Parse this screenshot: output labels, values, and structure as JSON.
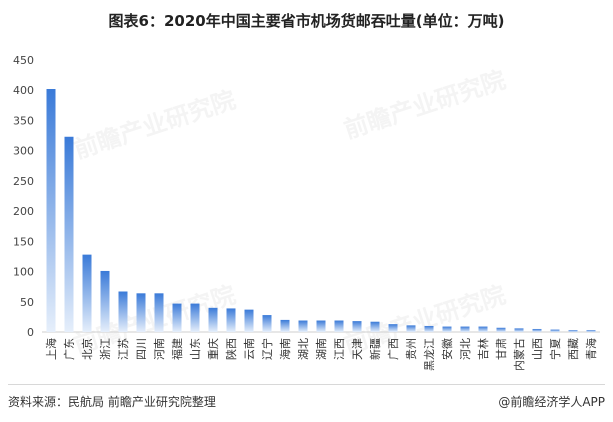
{
  "footer": {
    "source": "资料来源：民航局 前瞻产业研究院整理",
    "brand": "@前瞻经济学人APP"
  },
  "watermark": {
    "text": "前瞻产业研究院"
  },
  "chart_data": {
    "type": "bar",
    "title": "图表6：2020年中国主要省市机场货邮吞吐量(单位：万吨)",
    "xlabel": "",
    "ylabel": "",
    "ylim": [
      0,
      450
    ],
    "yticks": [
      0,
      50,
      100,
      150,
      200,
      250,
      300,
      350,
      400,
      450
    ],
    "grid": false,
    "legend": "none",
    "bar_color_top": "#3a7ad8",
    "bar_color_bottom": "#e6effb",
    "categories": [
      "上海",
      "广东",
      "北京",
      "浙江",
      "江苏",
      "四川",
      "河南",
      "福建",
      "山东",
      "重庆",
      "陕西",
      "云南",
      "辽宁",
      "海南",
      "湖北",
      "湖南",
      "江西",
      "天津",
      "新疆",
      "广西",
      "贵州",
      "黑龙江",
      "安徽",
      "河北",
      "吉林",
      "甘肃",
      "内蒙古",
      "山西",
      "宁夏",
      "西藏",
      "青海"
    ],
    "values": [
      402,
      323,
      128,
      101,
      67,
      64,
      64,
      47,
      47,
      40,
      39,
      37,
      28,
      20,
      19,
      19,
      19,
      18,
      17,
      13,
      11,
      10,
      9,
      9,
      9,
      7,
      6,
      5,
      4,
      3,
      3
    ]
  }
}
